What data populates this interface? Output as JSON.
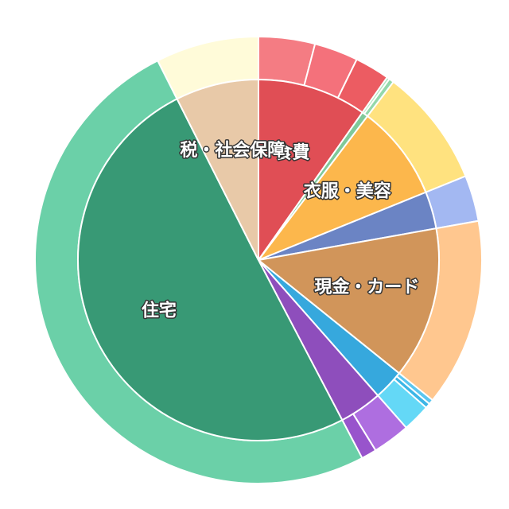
{
  "chart_data": {
    "type": "pie",
    "inner": [
      {
        "label": "食費",
        "value": 9.7,
        "color": "#e04e55"
      },
      {
        "label": "",
        "value": 0.55,
        "color": "#7fc99a"
      },
      {
        "label": "衣服・美容",
        "value": 8.5,
        "color": "#fcb74c"
      },
      {
        "label": "",
        "value": 3.3,
        "color": "#6b84c4"
      },
      {
        "label": "現金・カード",
        "value": 13.5,
        "color": "#d1955a"
      },
      {
        "label": "",
        "value": 2.7,
        "color": "#36a8dd"
      },
      {
        "label": "",
        "value": 3.8,
        "color": "#8e4ebc"
      },
      {
        "label": "住宅",
        "value": 49.9,
        "color": "#389975"
      },
      {
        "label": "税・社会保障",
        "value": 7.4,
        "color": "#e8c9a8"
      }
    ],
    "outer": [
      {
        "value": 4.05,
        "color": "#f47c83"
      },
      {
        "value": 3.15,
        "color": "#f4717b"
      },
      {
        "value": 2.5,
        "color": "#ec5c62"
      },
      {
        "value": 0.2,
        "color": "#aee4bf"
      },
      {
        "value": 0.35,
        "color": "#93d8ab"
      },
      {
        "value": 8.5,
        "color": "#ffe27f"
      },
      {
        "value": 3.3,
        "color": "#a3b8f2"
      },
      {
        "value": 13.5,
        "color": "#ffc78f"
      },
      {
        "value": 0.35,
        "color": "#5bc6ef"
      },
      {
        "value": 0.35,
        "color": "#3cb6e6"
      },
      {
        "value": 2.0,
        "color": "#64d8f6"
      },
      {
        "value": 2.7,
        "color": "#ae6ee0"
      },
      {
        "value": 1.1,
        "color": "#9854cc"
      },
      {
        "value": 49.9,
        "color": "#6bd0a8"
      },
      {
        "value": 7.4,
        "color": "#fffbd9"
      }
    ]
  }
}
